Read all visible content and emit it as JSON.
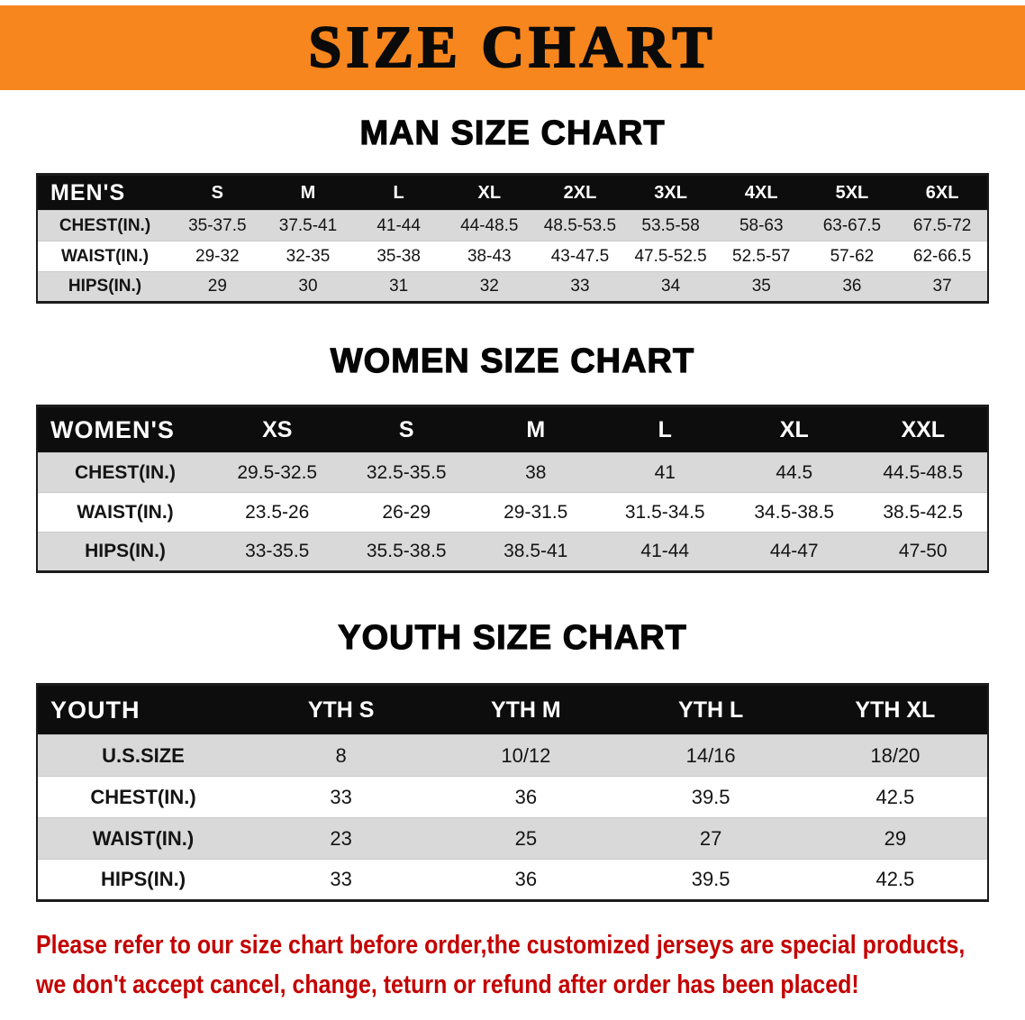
{
  "banner": {
    "title": "SIZE CHART"
  },
  "colors": {
    "banner_bg": "#f6861d",
    "table_header_bg": "#0d0d0d",
    "row_alt_bg": "#d9d9d9",
    "footer_text": "#c40000"
  },
  "men": {
    "heading": "MAN SIZE CHART",
    "header": [
      "MEN'S",
      "S",
      "M",
      "L",
      "XL",
      "2XL",
      "3XL",
      "4XL",
      "5XL",
      "6XL"
    ],
    "rows": [
      [
        "CHEST(IN.)",
        "35-37.5",
        "37.5-41",
        "41-44",
        "44-48.5",
        "48.5-53.5",
        "53.5-58",
        "58-63",
        "63-67.5",
        "67.5-72"
      ],
      [
        "WAIST(IN.)",
        "29-32",
        "32-35",
        "35-38",
        "38-43",
        "43-47.5",
        "47.5-52.5",
        "52.5-57",
        "57-62",
        "62-66.5"
      ],
      [
        "HIPS(IN.)",
        "29",
        "30",
        "31",
        "32",
        "33",
        "34",
        "35",
        "36",
        "37"
      ]
    ]
  },
  "women": {
    "heading": "WOMEN SIZE CHART",
    "header": [
      "WOMEN'S",
      "XS",
      "S",
      "M",
      "L",
      "XL",
      "XXL"
    ],
    "rows": [
      [
        "CHEST(IN.)",
        "29.5-32.5",
        "32.5-35.5",
        "38",
        "41",
        "44.5",
        "44.5-48.5"
      ],
      [
        "WAIST(IN.)",
        "23.5-26",
        "26-29",
        "29-31.5",
        "31.5-34.5",
        "34.5-38.5",
        "38.5-42.5"
      ],
      [
        "HIPS(IN.)",
        "33-35.5",
        "35.5-38.5",
        "38.5-41",
        "41-44",
        "44-47",
        "47-50"
      ]
    ]
  },
  "youth": {
    "heading": "YOUTH SIZE CHART",
    "header": [
      "YOUTH",
      "YTH S",
      "YTH M",
      "YTH L",
      "YTH XL"
    ],
    "rows": [
      [
        "U.S.SIZE",
        "8",
        "10/12",
        "14/16",
        "18/20"
      ],
      [
        "CHEST(IN.)",
        "33",
        "36",
        "39.5",
        "42.5"
      ],
      [
        "WAIST(IN.)",
        "23",
        "25",
        "27",
        "29"
      ],
      [
        "HIPS(IN.)",
        "33",
        "36",
        "39.5",
        "42.5"
      ]
    ]
  },
  "footer": {
    "line1": "Please refer to our size chart before order,the customized jerseys are special products,",
    "line2": "we don't accept cancel, change, teturn or refund after order has been placed!"
  }
}
